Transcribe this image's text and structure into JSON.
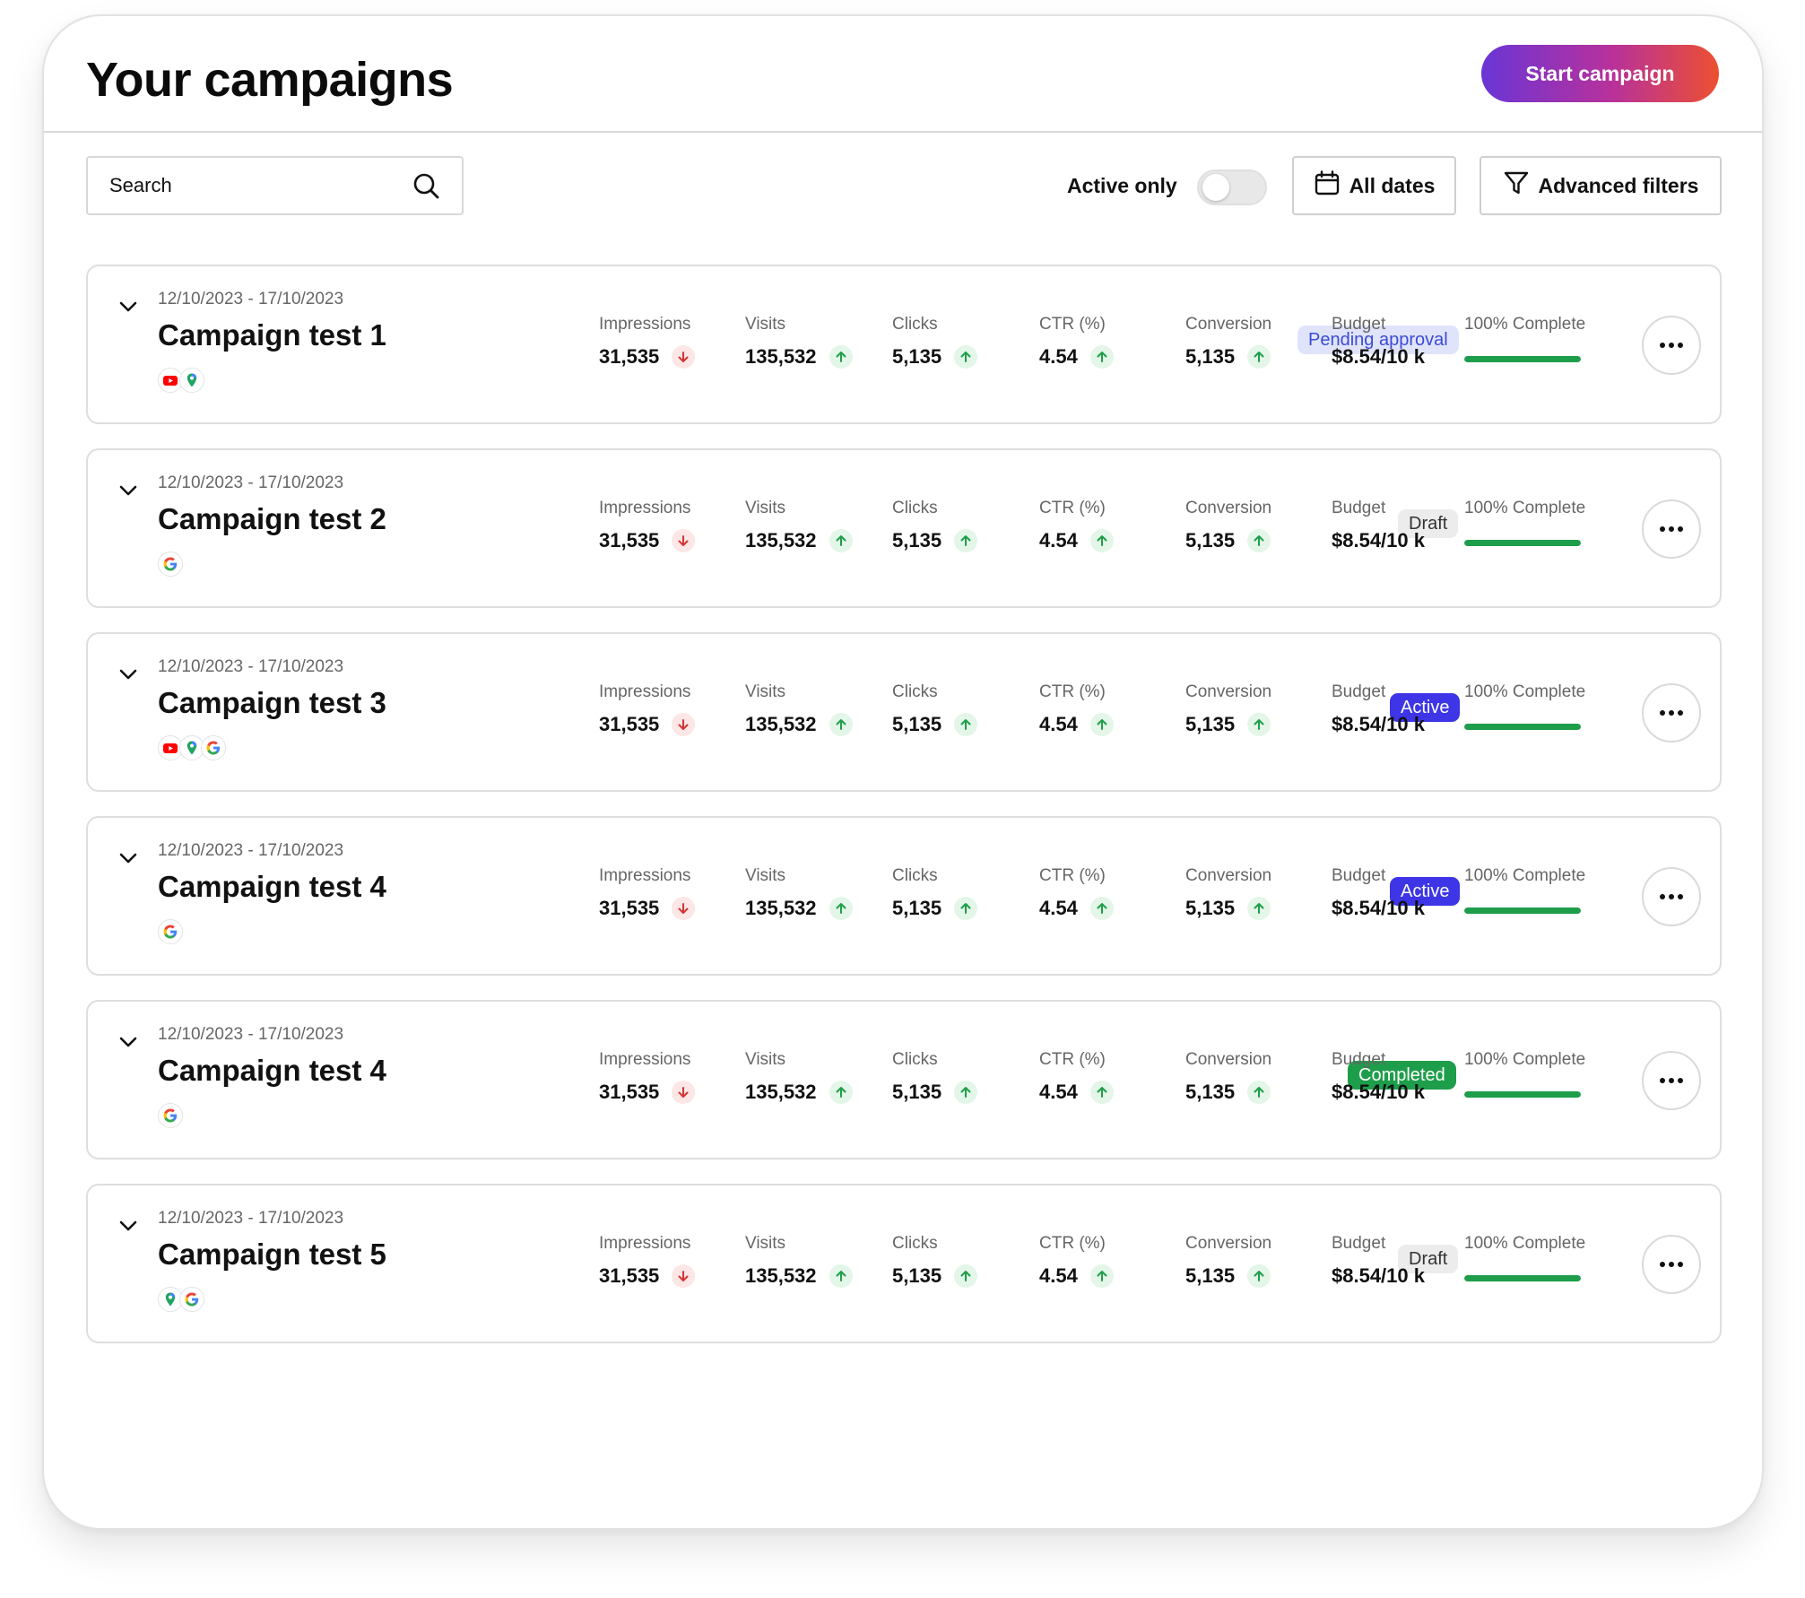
{
  "header": {
    "title": "Your campaigns",
    "start_button": "Start campaign"
  },
  "toolbar": {
    "search_placeholder": "Search",
    "active_only_label": "Active only",
    "active_only_on": false,
    "dates_label": "All dates",
    "advanced_filters_label": "Advanced filters"
  },
  "metric_labels": {
    "impressions": "Impressions",
    "visits": "Visits",
    "clicks": "Clicks",
    "ctr": "CTR (%)",
    "conversion": "Conversion",
    "budget": "Budget"
  },
  "colors": {
    "badge_pending_bg": "#e0e4fb",
    "badge_pending_fg": "#3b4bd8",
    "badge_draft_bg": "#ececec",
    "badge_draft_fg": "#333333",
    "badge_active_bg": "#3d35e6",
    "badge_active_fg": "#ffffff",
    "badge_completed_bg": "#1e9e4a",
    "badge_completed_fg": "#ffffff",
    "trend_up": "#1e9e4a",
    "trend_down": "#d23535",
    "progress": "#1e9e4a"
  },
  "campaigns": [
    {
      "date_range": "12/10/2023 - 17/10/2023",
      "name": "Campaign test 1",
      "status": "Pending approval",
      "status_style": "pending",
      "channels": [
        "youtube-icon",
        "maps-pin-icon"
      ],
      "impressions": "31,535",
      "impressions_trend": "down",
      "visits": "135,532",
      "visits_trend": "up",
      "clicks": "5,135",
      "clicks_trend": "up",
      "ctr": "4.54",
      "ctr_trend": "up",
      "conversion": "5,135",
      "conversion_trend": "up",
      "budget": "$8.54/10 k",
      "progress_label": "100% Complete",
      "progress": 1.0
    },
    {
      "date_range": "12/10/2023 - 17/10/2023",
      "name": "Campaign test 2",
      "status": "Draft",
      "status_style": "draft",
      "channels": [
        "google-icon"
      ],
      "impressions": "31,535",
      "impressions_trend": "down",
      "visits": "135,532",
      "visits_trend": "up",
      "clicks": "5,135",
      "clicks_trend": "up",
      "ctr": "4.54",
      "ctr_trend": "up",
      "conversion": "5,135",
      "conversion_trend": "up",
      "budget": "$8.54/10 k",
      "progress_label": "100% Complete",
      "progress": 1.0
    },
    {
      "date_range": "12/10/2023 - 17/10/2023",
      "name": "Campaign test 3",
      "status": "Active",
      "status_style": "active",
      "channels": [
        "youtube-icon",
        "maps-pin-icon",
        "google-icon"
      ],
      "impressions": "31,535",
      "impressions_trend": "down",
      "visits": "135,532",
      "visits_trend": "up",
      "clicks": "5,135",
      "clicks_trend": "up",
      "ctr": "4.54",
      "ctr_trend": "up",
      "conversion": "5,135",
      "conversion_trend": "up",
      "budget": "$8.54/10 k",
      "progress_label": "100% Complete",
      "progress": 1.0
    },
    {
      "date_range": "12/10/2023 - 17/10/2023",
      "name": "Campaign test 4",
      "status": "Active",
      "status_style": "active",
      "channels": [
        "google-icon"
      ],
      "impressions": "31,535",
      "impressions_trend": "down",
      "visits": "135,532",
      "visits_trend": "up",
      "clicks": "5,135",
      "clicks_trend": "up",
      "ctr": "4.54",
      "ctr_trend": "up",
      "conversion": "5,135",
      "conversion_trend": "up",
      "budget": "$8.54/10 k",
      "progress_label": "100% Complete",
      "progress": 1.0
    },
    {
      "date_range": "12/10/2023 - 17/10/2023",
      "name": "Campaign test 4",
      "status": "Completed",
      "status_style": "completed",
      "channels": [
        "google-icon"
      ],
      "impressions": "31,535",
      "impressions_trend": "down",
      "visits": "135,532",
      "visits_trend": "up",
      "clicks": "5,135",
      "clicks_trend": "up",
      "ctr": "4.54",
      "ctr_trend": "up",
      "conversion": "5,135",
      "conversion_trend": "up",
      "budget": "$8.54/10 k",
      "progress_label": "100% Complete",
      "progress": 1.0
    },
    {
      "date_range": "12/10/2023 - 17/10/2023",
      "name": "Campaign test 5",
      "status": "Draft",
      "status_style": "draft",
      "channels": [
        "maps-pin-icon",
        "google-icon"
      ],
      "impressions": "31,535",
      "impressions_trend": "down",
      "visits": "135,532",
      "visits_trend": "up",
      "clicks": "5,135",
      "clicks_trend": "up",
      "ctr": "4.54",
      "ctr_trend": "up",
      "conversion": "5,135",
      "conversion_trend": "up",
      "budget": "$8.54/10 k",
      "progress_label": "100% Complete",
      "progress": 1.0
    }
  ]
}
